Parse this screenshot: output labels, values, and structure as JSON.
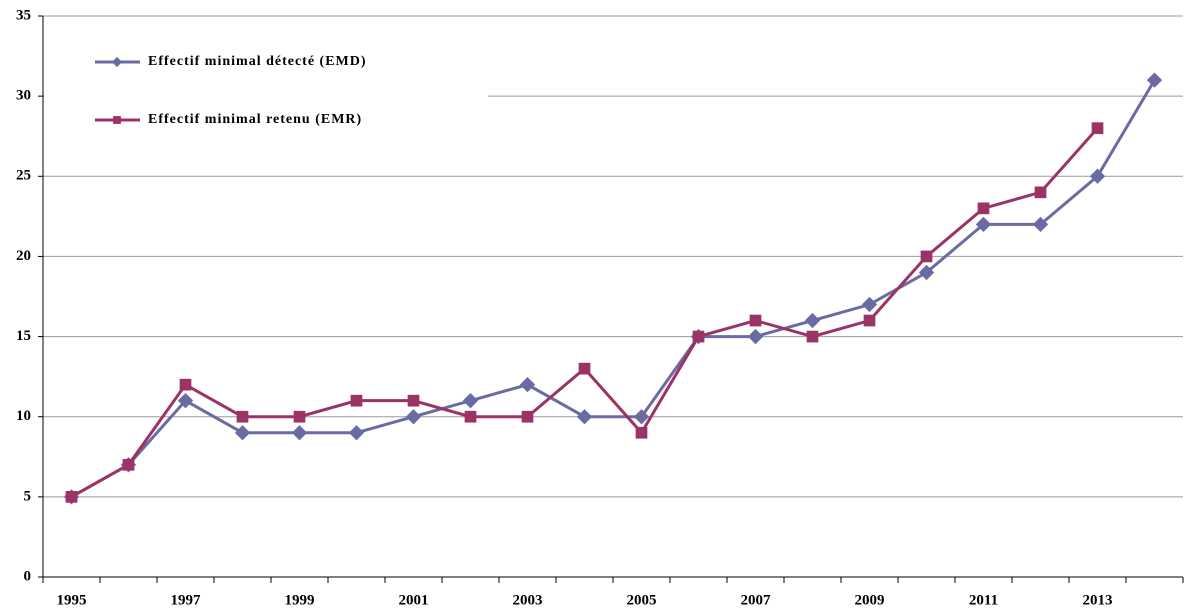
{
  "chart_data": {
    "type": "line",
    "categories": [
      1995,
      null,
      1997,
      null,
      1999,
      null,
      2001,
      null,
      2003,
      null,
      2005,
      null,
      2007,
      null,
      2009,
      null,
      2011,
      null,
      2013,
      null
    ],
    "series": [
      {
        "name": "Effectif minimal détecté (EMD)",
        "color": "#6b6ba3",
        "marker": "diamond",
        "values": [
          5,
          7,
          11,
          9,
          9,
          9,
          10,
          11,
          12,
          10,
          10,
          15,
          15,
          16,
          17,
          19,
          22,
          22,
          25,
          31
        ]
      },
      {
        "name": "Effectif minimal retenu (EMR)",
        "color": "#9b3366",
        "marker": "square",
        "values": [
          5,
          7,
          12,
          10,
          10,
          11,
          11,
          10,
          10,
          13,
          9,
          15,
          16,
          15,
          16,
          20,
          23,
          24,
          28,
          null
        ]
      }
    ],
    "ylim": [
      0,
      35
    ],
    "yticks": [
      0,
      5,
      10,
      15,
      20,
      25,
      30,
      35
    ],
    "grid": true,
    "legend": "upper left"
  }
}
